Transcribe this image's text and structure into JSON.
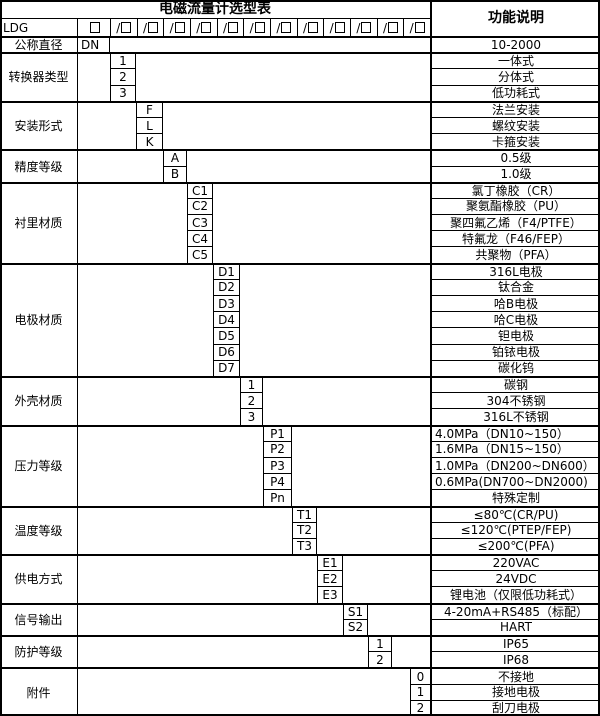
{
  "title": "电磁流量计选型表",
  "function_column_header": "功能说明",
  "model_row": {
    "prefix": "LDG",
    "blank_box_symbol": "□",
    "slot_separator": "/",
    "slot_symbol": "/□",
    "slot_count": 12
  },
  "sections": [
    {
      "label": "公称直径",
      "rows": [
        {
          "code": "DN",
          "desc": "10-2000"
        }
      ]
    },
    {
      "label": "转换器类型",
      "rows": [
        {
          "code": "1",
          "desc": "一体式"
        },
        {
          "code": "2",
          "desc": "分体式"
        },
        {
          "code": "3",
          "desc": "低功耗式"
        }
      ]
    },
    {
      "label": "安装形式",
      "rows": [
        {
          "code": "F",
          "desc": "法兰安装"
        },
        {
          "code": "L",
          "desc": "螺纹安装"
        },
        {
          "code": "K",
          "desc": "卡箍安装"
        }
      ]
    },
    {
      "label": "精度等级",
      "rows": [
        {
          "code": "A",
          "desc": "0.5级"
        },
        {
          "code": "B",
          "desc": "1.0级"
        }
      ]
    },
    {
      "label": "衬里材质",
      "rows": [
        {
          "code": "C1",
          "desc": "氯丁橡胶（CR）"
        },
        {
          "code": "C2",
          "desc": "聚氨酯橡胶（PU）"
        },
        {
          "code": "C3",
          "desc": "聚四氟乙烯（F4/PTFE）"
        },
        {
          "code": "C4",
          "desc": "特氟龙（F46/FEP）"
        },
        {
          "code": "C5",
          "desc": "共聚物（PFA）"
        }
      ]
    },
    {
      "label": "电极材质",
      "rows": [
        {
          "code": "D1",
          "desc": "316L电极"
        },
        {
          "code": "D2",
          "desc": "钛合金"
        },
        {
          "code": "D3",
          "desc": "哈B电极"
        },
        {
          "code": "D4",
          "desc": "哈C电极"
        },
        {
          "code": "D5",
          "desc": "钽电极"
        },
        {
          "code": "D6",
          "desc": "铂铱电极"
        },
        {
          "code": "D7",
          "desc": "碳化钨"
        }
      ]
    },
    {
      "label": "外壳材质",
      "rows": [
        {
          "code": "1",
          "desc": "碳钢"
        },
        {
          "code": "2",
          "desc": "304不锈钢"
        },
        {
          "code": "3",
          "desc": "316L不锈钢"
        }
      ]
    },
    {
      "label": "压力等级",
      "rows": [
        {
          "code": "P1",
          "desc": "4.0MPa（DN10~150）",
          "align": "left"
        },
        {
          "code": "P2",
          "desc": "1.6MPa（DN15~150）",
          "align": "left"
        },
        {
          "code": "P3",
          "desc": "1.0MPa（DN200~DN600）",
          "align": "left"
        },
        {
          "code": "P4",
          "desc": "0.6MPa(DN700~DN2000)",
          "align": "left"
        },
        {
          "code": "Pn",
          "desc": "特殊定制"
        }
      ]
    },
    {
      "label": "温度等级",
      "rows": [
        {
          "code": "T1",
          "desc": "≤80℃(CR/PU)"
        },
        {
          "code": "T2",
          "desc": "≤120℃(PTEP/FEP)"
        },
        {
          "code": "T3",
          "desc": "≤200℃(PFA)"
        }
      ]
    },
    {
      "label": "供电方式",
      "rows": [
        {
          "code": "E1",
          "desc": "220VAC"
        },
        {
          "code": "E2",
          "desc": "24VDC"
        },
        {
          "code": "E3",
          "desc": "锂电池（仅限低功耗式）"
        }
      ]
    },
    {
      "label": "信号输出",
      "rows": [
        {
          "code": "S1",
          "desc": "4-20mA+RS485（标配）"
        },
        {
          "code": "S2",
          "desc": "HART"
        }
      ]
    },
    {
      "label": "防护等级",
      "rows": [
        {
          "code": "1",
          "desc": "IP65"
        },
        {
          "code": "2",
          "desc": "IP68"
        }
      ]
    },
    {
      "label": "附件",
      "rows": [
        {
          "code": "0",
          "desc": "不接地"
        },
        {
          "code": "1",
          "desc": "接地电极"
        },
        {
          "code": "2",
          "desc": "刮刀电极"
        }
      ]
    }
  ],
  "colors": {
    "border": "#000000",
    "text": "#000000",
    "background": "#ffffff"
  }
}
